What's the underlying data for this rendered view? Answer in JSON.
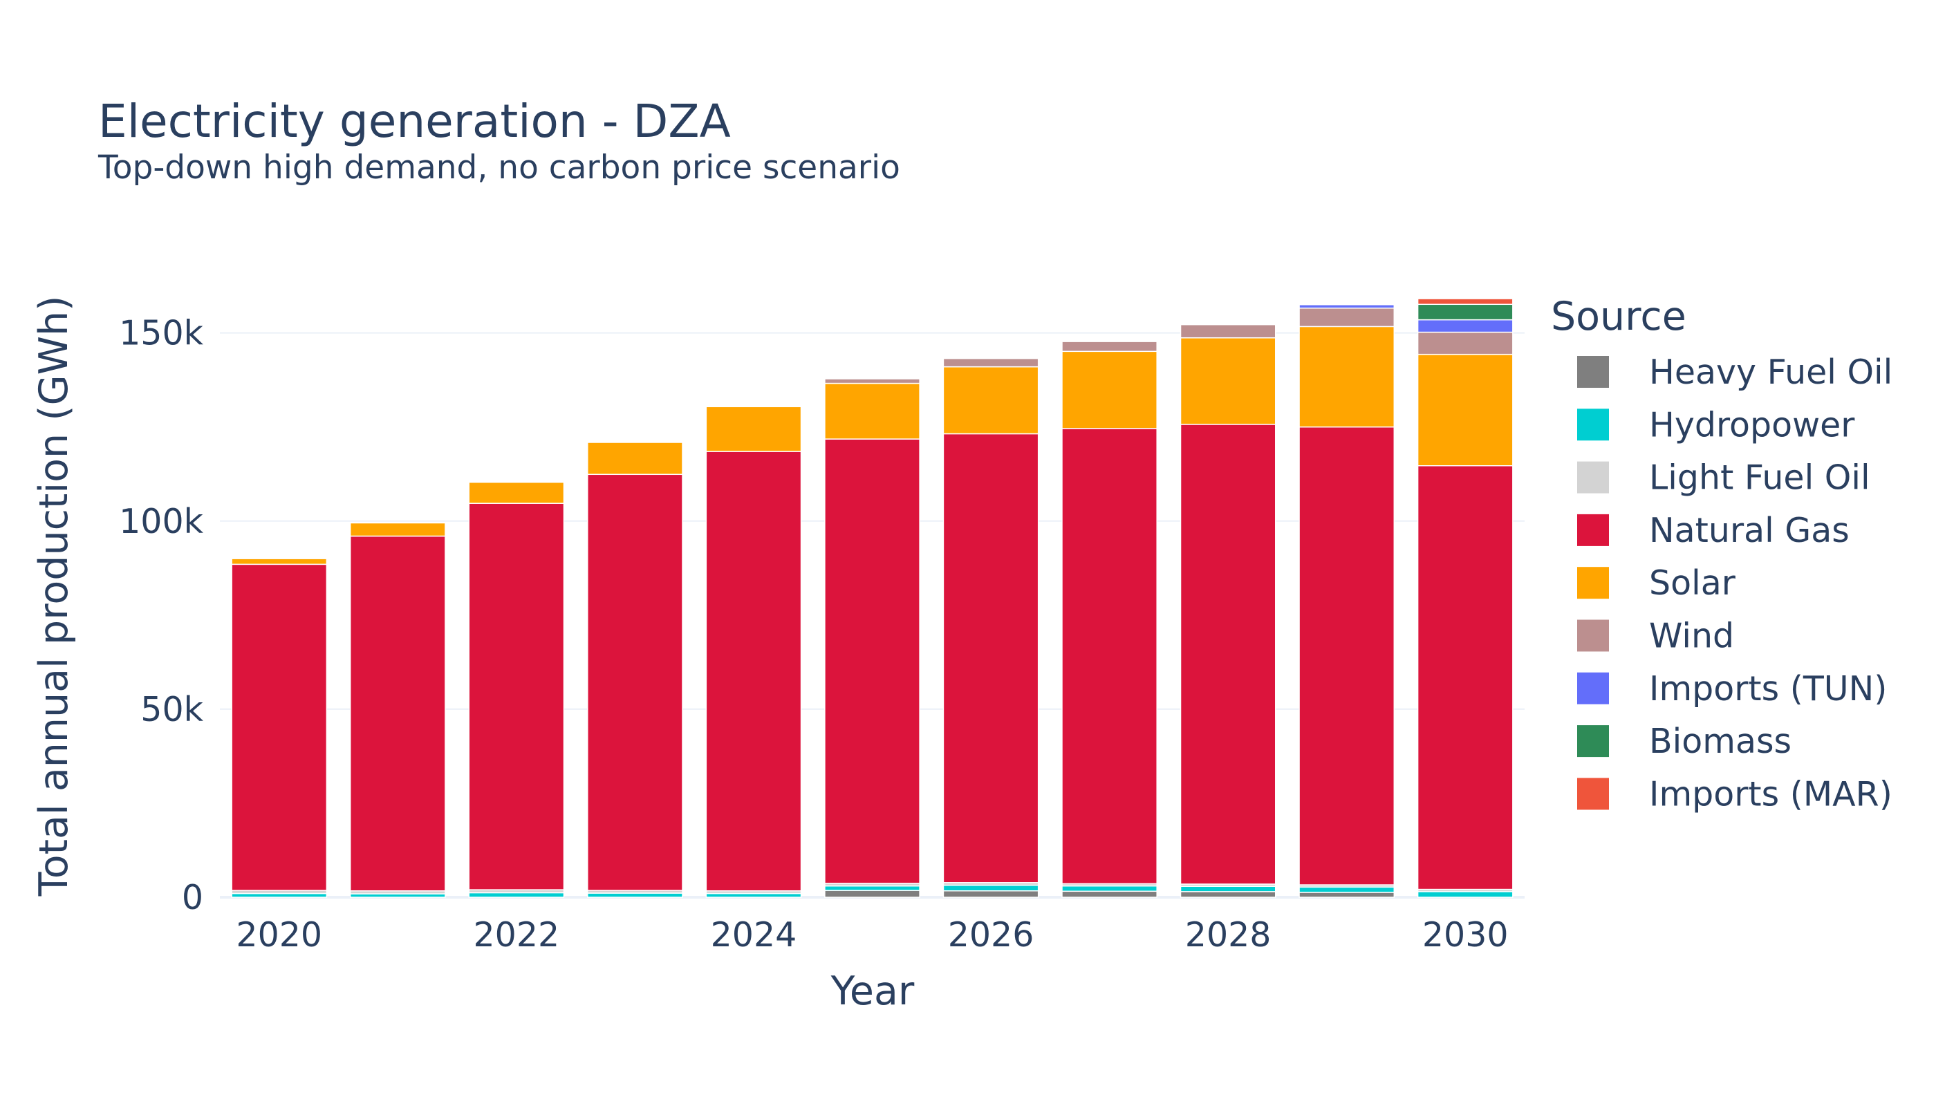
{
  "chart_data": {
    "type": "bar",
    "stacked": true,
    "title": "Electricity generation - DZA",
    "subtitle": "Top-down high demand, no carbon price scenario",
    "xlabel": "Year",
    "ylabel": "Total annual production (GWh)",
    "x": [
      2020,
      2021,
      2022,
      2023,
      2024,
      2025,
      2026,
      2027,
      2028,
      2029,
      2030
    ],
    "x_ticks": [
      "2020",
      "2022",
      "2024",
      "2026",
      "2028",
      "2030"
    ],
    "y_ticks": [
      {
        "value": 0,
        "label": "0"
      },
      {
        "value": 50000,
        "label": "50k"
      },
      {
        "value": 100000,
        "label": "100k"
      },
      {
        "value": 150000,
        "label": "150k"
      }
    ],
    "ylim": [
      0,
      165000
    ],
    "grid": true,
    "legend": {
      "title": "Source",
      "placement": "right"
    },
    "series": [
      {
        "name": "Heavy Fuel Oil",
        "color": "#7f7f7f",
        "values": [
          0,
          0,
          0,
          0,
          0,
          1800,
          1700,
          1600,
          1500,
          1300,
          0
        ]
      },
      {
        "name": "Hydropower",
        "color": "#00ced1",
        "values": [
          1000,
          900,
          1200,
          1100,
          1000,
          1200,
          1500,
          1400,
          1400,
          1400,
          1500
        ]
      },
      {
        "name": "Light Fuel Oil",
        "color": "#d3d3d3",
        "values": [
          800,
          800,
          800,
          700,
          700,
          700,
          700,
          600,
          600,
          600,
          600
        ]
      },
      {
        "name": "Natural Gas",
        "color": "#dc143c",
        "values": [
          86700,
          94300,
          102700,
          110600,
          116800,
          118100,
          119300,
          121000,
          122200,
          121700,
          112600
        ]
      },
      {
        "name": "Solar",
        "color": "#ffa500",
        "values": [
          1500,
          3500,
          5600,
          8500,
          11900,
          14800,
          17800,
          20500,
          23000,
          26700,
          29600
        ]
      },
      {
        "name": "Wind",
        "color": "#bc8f8f",
        "values": [
          0,
          0,
          0,
          0,
          0,
          1200,
          2200,
          2600,
          3500,
          4900,
          5900
        ]
      },
      {
        "name": "Imports (TUN)",
        "color": "#636efa",
        "values": [
          0,
          0,
          0,
          0,
          0,
          0,
          0,
          0,
          0,
          900,
          3300
        ]
      },
      {
        "name": "Biomass",
        "color": "#2e8b57",
        "values": [
          0,
          0,
          0,
          0,
          0,
          0,
          0,
          0,
          0,
          0,
          4100
        ]
      },
      {
        "name": "Imports (MAR)",
        "color": "#ef553b",
        "values": [
          0,
          0,
          0,
          0,
          0,
          0,
          0,
          0,
          0,
          0,
          1500
        ]
      }
    ]
  }
}
